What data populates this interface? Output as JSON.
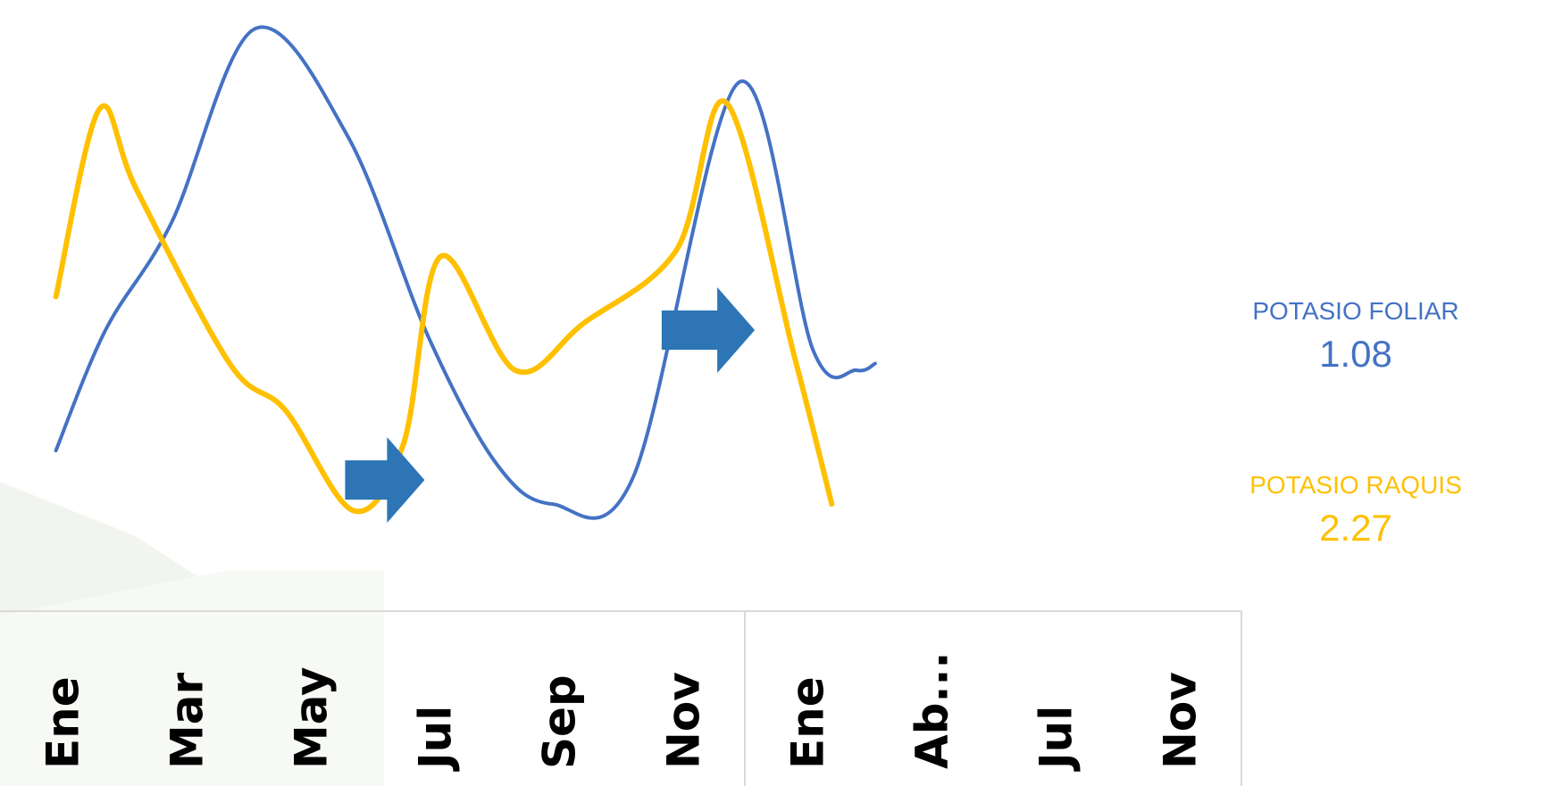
{
  "chart_data": {
    "type": "line",
    "categories": [
      "Ene",
      "Mar",
      "May",
      "Jul",
      "Sep",
      "Nov",
      "Ene",
      "Ab...",
      "Jul",
      "Nov"
    ],
    "series": [
      {
        "name": "POTASIO FOLIAR",
        "color": "#4472C4",
        "points": [
          [
            -0.05,
            1.04
          ],
          [
            0.35,
            1.22
          ],
          [
            0.88,
            1.38
          ],
          [
            1.55,
            1.67
          ],
          [
            2.3,
            1.51
          ],
          [
            2.95,
            1.21
          ],
          [
            3.5,
            1.02
          ],
          [
            3.95,
            0.96
          ],
          [
            4.6,
            1.0
          ],
          [
            5.45,
            1.59
          ],
          [
            6.05,
            1.19
          ],
          [
            6.4,
            1.16
          ],
          [
            6.55,
            1.17
          ]
        ]
      },
      {
        "name": "POTASIO RAQUIS",
        "color": "#FFC000",
        "points": [
          [
            -0.05,
            1.27
          ],
          [
            0.3,
            1.55
          ],
          [
            0.6,
            1.43
          ],
          [
            1.35,
            1.17
          ],
          [
            1.8,
            1.1
          ],
          [
            2.35,
            0.95
          ],
          [
            2.75,
            1.05
          ],
          [
            3.05,
            1.33
          ],
          [
            3.65,
            1.16
          ],
          [
            4.2,
            1.23
          ],
          [
            4.95,
            1.34
          ],
          [
            5.35,
            1.56
          ],
          [
            5.9,
            1.18
          ],
          [
            6.2,
            0.96
          ]
        ]
      }
    ],
    "annotations": [
      {
        "type": "arrow",
        "from_x": 2.28,
        "to_x": 2.92,
        "y": 0.996,
        "color": "#2E75B6"
      },
      {
        "type": "arrow",
        "from_x": 4.83,
        "to_x": 5.58,
        "y": 1.22,
        "color": "#2E75B6"
      }
    ],
    "ylim": [
      0.9,
      1.7
    ],
    "grid": false,
    "legend_position": "right",
    "title": "",
    "xlabel": "",
    "ylabel": ""
  },
  "legend": {
    "foliar": {
      "label": "POTASIO FOLIAR",
      "value": "1.08",
      "color": "#4472C4"
    },
    "raquis": {
      "label": "POTASIO RAQUIS",
      "value": "2.27",
      "color": "#FFC000"
    }
  }
}
